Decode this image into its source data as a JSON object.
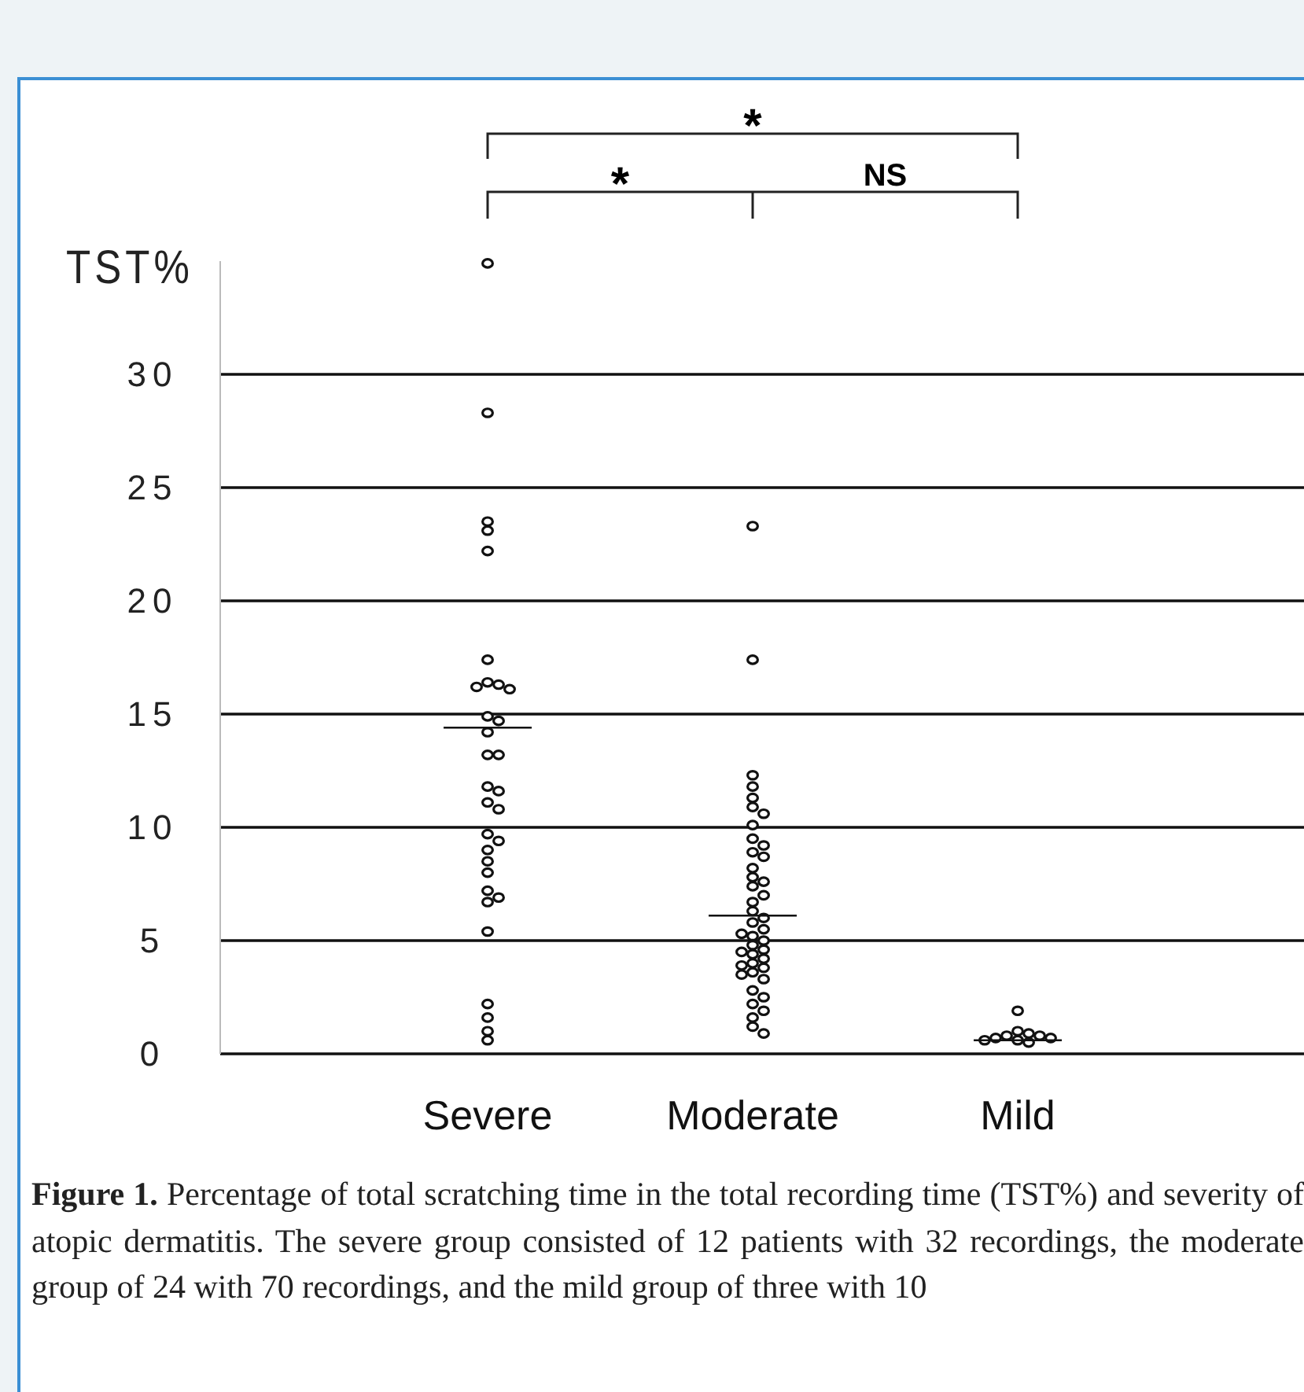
{
  "chart_data": {
    "type": "scatter",
    "ylabel": "TST%",
    "categories": [
      "Severe",
      "Moderate",
      "Mild"
    ],
    "series": [
      {
        "type": "scatter",
        "color": "#111111",
        "marker": "circle",
        "x": [
          "Severe",
          "Severe",
          "Severe",
          "Severe",
          "Severe",
          "Severe",
          "Severe",
          "Severe",
          "Severe",
          "Severe",
          "Severe",
          "Severe",
          "Severe",
          "Severe",
          "Severe",
          "Severe",
          "Severe",
          "Severe",
          "Severe",
          "Severe",
          "Severe",
          "Severe",
          "Severe",
          "Severe",
          "Severe",
          "Severe",
          "Severe",
          "Severe",
          "Severe",
          "Severe",
          "Severe",
          "Severe"
        ],
        "values": [
          34.9,
          28.3,
          23.5,
          23.1,
          22.2,
          17.4,
          16.4,
          16.3,
          16.2,
          16.1,
          14.9,
          14.7,
          14.2,
          13.2,
          13.2,
          11.8,
          11.6,
          11.1,
          10.8,
          9.7,
          9.4,
          9.0,
          8.5,
          8.0,
          7.2,
          6.9,
          6.7,
          5.4,
          2.2,
          1.6,
          1.0,
          0.6
        ]
      },
      {
        "type": "scatter",
        "color": "#111111",
        "marker": "circle",
        "x": [
          "Moderate",
          "Moderate",
          "Moderate",
          "Moderate",
          "Moderate",
          "Moderate",
          "Moderate",
          "Moderate",
          "Moderate",
          "Moderate",
          "Moderate",
          "Moderate",
          "Moderate",
          "Moderate",
          "Moderate",
          "Moderate",
          "Moderate",
          "Moderate",
          "Moderate",
          "Moderate",
          "Moderate",
          "Moderate",
          "Moderate",
          "Moderate",
          "Moderate",
          "Moderate",
          "Moderate",
          "Moderate",
          "Moderate",
          "Moderate",
          "Moderate",
          "Moderate",
          "Moderate",
          "Moderate",
          "Moderate",
          "Moderate",
          "Moderate",
          "Moderate",
          "Moderate",
          "Moderate",
          "Moderate",
          "Moderate",
          "Moderate"
        ],
        "values": [
          23.3,
          17.4,
          12.3,
          11.8,
          11.3,
          10.9,
          10.6,
          10.1,
          9.5,
          9.2,
          8.9,
          8.7,
          7.8,
          7.6,
          7.4,
          6.7,
          6.3,
          5.8,
          5.5,
          5.2,
          5.0,
          4.8,
          4.6,
          4.4,
          4.2,
          4.0,
          3.8,
          3.6,
          3.5,
          3.3,
          2.8,
          2.5,
          2.2,
          1.9,
          1.6,
          1.2,
          0.9,
          5.3,
          4.5,
          3.9,
          7.0,
          8.2,
          6.0
        ]
      },
      {
        "type": "scatter",
        "color": "#111111",
        "marker": "circle",
        "x": [
          "Mild",
          "Mild",
          "Mild",
          "Mild",
          "Mild",
          "Mild",
          "Mild",
          "Mild",
          "Mild",
          "Mild"
        ],
        "values": [
          1.9,
          1.0,
          0.9,
          0.8,
          0.8,
          0.7,
          0.7,
          0.6,
          0.6,
          0.5
        ]
      },
      {
        "type": "box",
        "color": "#111111",
        "boxes": [
          {
            "low": 14.4,
            "q1": 14.4,
            "median": 14.4,
            "q3": 14.4,
            "high": 14.4
          },
          {
            "low": 6.1,
            "q1": 6.1,
            "median": 6.1,
            "q3": 6.1,
            "high": 6.1
          },
          {
            "low": 0.6,
            "q1": 0.6,
            "median": 0.6,
            "q3": 0.6,
            "high": 0.6
          }
        ]
      }
    ],
    "ylim": [
      0,
      35
    ],
    "yticks": [
      0,
      5,
      10,
      15,
      20,
      25,
      30
    ],
    "grid": "y",
    "annotations": [
      "*",
      "*",
      "NS",
      "Figure 1. Percentage of total scratching time in the total recording time (TST%) and severity of atopic dermatitis. The severe group consisted of 12 patients with 32 recordings, the moderate group of 24 with 70 recordings, and the mild group of three with 10"
    ]
  }
}
